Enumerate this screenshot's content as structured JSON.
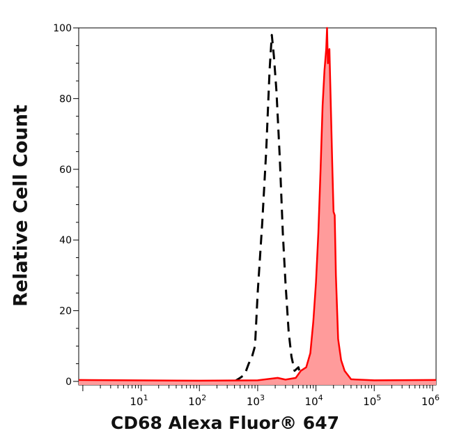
{
  "chart_data": {
    "type": "area",
    "xlabel": "CD68 Alexa Fluor® 647",
    "ylabel": "Relative Cell Count",
    "x_scale": "log",
    "xlim": [
      0.85,
      1150000
    ],
    "ylim": [
      -1,
      100
    ],
    "x_ticks": [
      {
        "value": 10,
        "base": "10",
        "exp": "1"
      },
      {
        "value": 100,
        "base": "10",
        "exp": "2"
      },
      {
        "value": 1000,
        "base": "10",
        "exp": "3"
      },
      {
        "value": 10000,
        "base": "10",
        "exp": "4"
      },
      {
        "value": 100000,
        "base": "10",
        "exp": "5"
      },
      {
        "value": 1000000,
        "base": "10",
        "exp": "6"
      }
    ],
    "y_ticks": [
      0,
      20,
      40,
      60,
      80,
      100
    ],
    "grid": false,
    "series": [
      {
        "style": "dashed",
        "color": "#000000",
        "filled": false,
        "points": [
          [
            400,
            0
          ],
          [
            500,
            1
          ],
          [
            600,
            2
          ],
          [
            700,
            5
          ],
          [
            800,
            7
          ],
          [
            900,
            10
          ],
          [
            1000,
            25
          ],
          [
            1200,
            45
          ],
          [
            1400,
            65
          ],
          [
            1600,
            88
          ],
          [
            1750,
            98
          ],
          [
            1900,
            92
          ],
          [
            2100,
            82
          ],
          [
            2400,
            63
          ],
          [
            2700,
            42
          ],
          [
            3000,
            28
          ],
          [
            3400,
            14
          ],
          [
            3800,
            7
          ],
          [
            4300,
            3
          ],
          [
            5000,
            4
          ],
          [
            5600,
            1
          ],
          [
            6500,
            0
          ]
        ]
      },
      {
        "style": "solid",
        "color": "#ff0000",
        "fill": "#ff9b9b",
        "filled": true,
        "points": [
          [
            0.85,
            0.4
          ],
          [
            100,
            0.2
          ],
          [
            1000,
            0.3
          ],
          [
            2200,
            1
          ],
          [
            3000,
            0.5
          ],
          [
            4500,
            1
          ],
          [
            5500,
            3
          ],
          [
            6800,
            4
          ],
          [
            8000,
            8
          ],
          [
            9000,
            17
          ],
          [
            10000,
            28
          ],
          [
            11000,
            42
          ],
          [
            12000,
            60
          ],
          [
            13000,
            78
          ],
          [
            14000,
            88
          ],
          [
            15000,
            94
          ],
          [
            15500,
            100
          ],
          [
            16000,
            90
          ],
          [
            17000,
            94
          ],
          [
            18000,
            78
          ],
          [
            19000,
            62
          ],
          [
            20000,
            48
          ],
          [
            21000,
            47
          ],
          [
            22000,
            30
          ],
          [
            24000,
            12
          ],
          [
            27000,
            6
          ],
          [
            31000,
            3
          ],
          [
            40000,
            0.6
          ],
          [
            100000,
            0.3
          ],
          [
            1150000,
            0.4
          ]
        ]
      }
    ]
  }
}
